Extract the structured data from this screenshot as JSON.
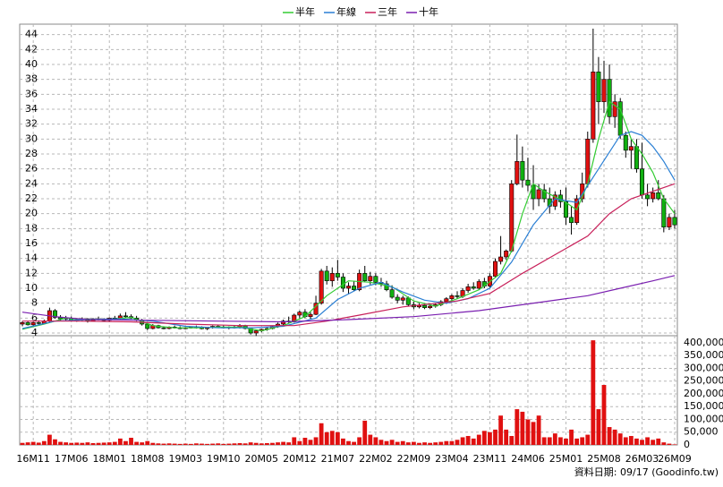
{
  "chart_data": {
    "type": "candlestick",
    "categories": [
      null,
      null,
      "16M11",
      null,
      null,
      null,
      null,
      null,
      null,
      "17M06",
      null,
      null,
      null,
      null,
      null,
      null,
      "18M01",
      null,
      null,
      null,
      null,
      null,
      null,
      "18M08",
      null,
      null,
      null,
      null,
      null,
      null,
      "19M03",
      null,
      null,
      null,
      null,
      null,
      null,
      "19M10",
      null,
      null,
      null,
      null,
      null,
      null,
      "20M05",
      null,
      null,
      null,
      null,
      null,
      null,
      "20M12",
      null,
      null,
      null,
      null,
      null,
      null,
      "21M07",
      null,
      null,
      null,
      null,
      null,
      null,
      "22M02",
      null,
      null,
      null,
      null,
      null,
      null,
      "22M09",
      null,
      null,
      null,
      null,
      null,
      null,
      "23M04",
      null,
      null,
      null,
      null,
      null,
      null,
      "23M11",
      null,
      null,
      null,
      null,
      null,
      null,
      "24M06",
      null,
      null,
      null,
      null,
      null,
      null,
      "25M01",
      null,
      null,
      null,
      null,
      null,
      null,
      "25M08",
      null,
      null,
      null,
      null,
      null,
      null,
      "26M03",
      null,
      null,
      null,
      null,
      null,
      "26M09"
    ],
    "open": [
      5.2,
      5.4,
      5.1,
      5.4,
      5.3,
      5.6,
      7.0,
      6.1,
      5.9,
      6.0,
      5.7,
      5.8,
      5.9,
      5.6,
      5.9,
      5.8,
      5.7,
      6.0,
      5.9,
      6.3,
      6.2,
      6.0,
      5.7,
      5.2,
      4.6,
      5.0,
      4.7,
      4.6,
      4.8,
      4.7,
      4.6,
      4.7,
      4.8,
      4.7,
      4.6,
      4.7,
      4.9,
      4.8,
      4.7,
      4.8,
      4.7,
      5.0,
      4.6,
      4.0,
      4.3,
      4.5,
      4.6,
      4.9,
      5.2,
      5.6,
      5.5,
      6.4,
      6.8,
      6.2,
      6.5,
      8.0,
      12.3,
      11.0,
      12.0,
      11.5,
      10.0,
      10.3,
      9.8,
      12.0,
      11.0,
      11.6,
      10.8,
      10.6,
      9.8,
      8.8,
      8.4,
      8.7,
      7.8,
      7.5,
      7.7,
      7.4,
      7.6,
      7.8,
      8.2,
      8.6,
      9.0,
      8.9,
      9.7,
      10.2,
      10.0,
      10.9,
      10.3,
      11.6,
      13.6,
      14.2,
      15.0,
      24.0,
      27.0,
      24.5,
      23.8,
      22.0,
      23.2,
      22.0,
      21.0,
      22.5,
      21.6,
      19.5,
      18.8,
      22.0,
      24.0,
      30.0,
      39.0,
      35.0,
      38.0,
      33.0,
      35.0,
      30.5,
      28.5,
      29.0,
      26.0,
      22.5,
      22.0,
      22.8,
      22.0,
      18.2,
      19.5
    ],
    "high": [
      5.6,
      5.6,
      5.5,
      5.7,
      5.8,
      7.4,
      7.2,
      6.4,
      6.3,
      6.2,
      6.0,
      6.1,
      6.0,
      6.0,
      6.2,
      6.0,
      6.1,
      6.3,
      6.6,
      6.8,
      6.5,
      6.3,
      5.9,
      5.4,
      5.2,
      5.1,
      4.9,
      4.9,
      5.0,
      4.9,
      4.8,
      4.9,
      5.0,
      4.9,
      4.8,
      5.0,
      5.1,
      5.0,
      4.9,
      5.0,
      5.2,
      5.1,
      4.7,
      4.4,
      4.6,
      4.8,
      5.0,
      5.4,
      5.8,
      6.2,
      6.6,
      7.0,
      7.2,
      6.8,
      9.0,
      12.6,
      13.0,
      12.8,
      13.8,
      12.0,
      10.8,
      11.0,
      12.5,
      13.0,
      12.2,
      12.0,
      11.4,
      11.0,
      10.4,
      9.2,
      9.0,
      8.9,
      8.2,
      8.0,
      7.9,
      7.8,
      8.0,
      8.4,
      8.8,
      9.2,
      9.6,
      10.0,
      10.6,
      10.8,
      11.2,
      11.4,
      12.0,
      14.0,
      17.0,
      15.2,
      24.5,
      30.6,
      29.0,
      27.5,
      26.5,
      24.0,
      24.0,
      23.5,
      23.0,
      23.2,
      23.5,
      21.0,
      22.5,
      25.5,
      31.0,
      44.8,
      41.0,
      40.5,
      40.0,
      36.0,
      35.5,
      31.0,
      30.0,
      30.0,
      29.5,
      24.0,
      23.5,
      24.5,
      22.5,
      20.0,
      20.5
    ],
    "low": [
      4.9,
      5.0,
      5.0,
      5.1,
      5.2,
      5.5,
      5.9,
      5.6,
      5.6,
      5.6,
      5.5,
      5.6,
      5.4,
      5.5,
      5.7,
      5.5,
      5.6,
      5.8,
      5.8,
      6.0,
      5.9,
      5.6,
      5.0,
      4.4,
      4.5,
      4.6,
      4.5,
      4.5,
      4.6,
      4.5,
      4.5,
      4.6,
      4.6,
      4.5,
      4.4,
      4.6,
      4.7,
      4.6,
      4.5,
      4.6,
      4.6,
      4.5,
      3.8,
      3.6,
      4.1,
      4.3,
      4.5,
      4.7,
      5.0,
      5.3,
      5.4,
      6.0,
      6.0,
      5.9,
      6.4,
      7.8,
      10.5,
      10.2,
      11.0,
      9.5,
      9.2,
      9.6,
      9.6,
      10.8,
      10.5,
      10.4,
      10.2,
      9.6,
      8.6,
      8.0,
      7.8,
      7.6,
      7.2,
      7.3,
      7.2,
      7.2,
      7.4,
      7.6,
      7.9,
      8.3,
      8.6,
      8.7,
      9.4,
      9.8,
      9.8,
      10.0,
      10.1,
      11.4,
      13.2,
      13.8,
      14.8,
      23.8,
      23.5,
      23.0,
      20.5,
      21.0,
      21.5,
      20.0,
      20.5,
      20.8,
      18.5,
      17.2,
      18.5,
      21.5,
      23.5,
      29.5,
      32.0,
      33.5,
      32.0,
      31.5,
      30.0,
      27.5,
      26.0,
      25.5,
      22.0,
      21.0,
      21.5,
      21.8,
      17.5,
      17.8,
      18.0
    ],
    "close": [
      5.4,
      5.1,
      5.4,
      5.3,
      5.6,
      7.0,
      6.1,
      5.9,
      6.0,
      5.7,
      5.8,
      5.9,
      5.6,
      5.9,
      5.8,
      5.7,
      6.0,
      5.9,
      6.3,
      6.2,
      6.0,
      5.7,
      5.2,
      4.6,
      5.0,
      4.7,
      4.6,
      4.8,
      4.7,
      4.6,
      4.7,
      4.8,
      4.7,
      4.6,
      4.7,
      4.9,
      4.8,
      4.7,
      4.8,
      4.7,
      5.0,
      4.6,
      4.0,
      4.3,
      4.5,
      4.6,
      4.9,
      5.2,
      5.6,
      5.5,
      6.4,
      6.8,
      6.2,
      6.5,
      8.0,
      12.3,
      11.0,
      12.0,
      11.5,
      10.0,
      10.3,
      9.8,
      12.0,
      11.0,
      11.6,
      10.8,
      10.6,
      9.8,
      8.8,
      8.4,
      8.7,
      7.8,
      7.5,
      7.7,
      7.4,
      7.6,
      7.8,
      8.2,
      8.6,
      9.0,
      8.9,
      9.7,
      10.2,
      10.0,
      10.9,
      10.3,
      11.6,
      13.6,
      14.2,
      15.0,
      24.0,
      27.0,
      24.5,
      23.8,
      22.0,
      23.2,
      22.0,
      21.0,
      22.5,
      21.6,
      19.5,
      18.8,
      22.0,
      24.0,
      30.0,
      39.0,
      35.0,
      38.0,
      33.0,
      35.0,
      30.5,
      28.5,
      29.0,
      26.0,
      22.5,
      22.0,
      22.8,
      22.0,
      18.2,
      19.5,
      18.5
    ],
    "up_color": "#e01010",
    "down_color": "#10b010",
    "ylim": [
      3.4,
      45.4
    ],
    "yticks": [
      4,
      6,
      8,
      10,
      12,
      14,
      16,
      18,
      20,
      22,
      24,
      26,
      28,
      30,
      32,
      34,
      36,
      38,
      40,
      42,
      44
    ],
    "grid": true,
    "legend": "top",
    "series": [
      {
        "name": "半年",
        "color": "#33cc33",
        "x": [
          0,
          4,
          8,
          12,
          16,
          20,
          24,
          28,
          32,
          36,
          40,
          44,
          48,
          52,
          56,
          60,
          64,
          68,
          72,
          76,
          80,
          84,
          88,
          90,
          92,
          94,
          96,
          100,
          102,
          104,
          106,
          108,
          110,
          112,
          114,
          116,
          118,
          120
        ],
        "values": [
          4.5,
          5.2,
          6.0,
          5.8,
          5.8,
          6.1,
          5.0,
          4.7,
          4.7,
          4.8,
          4.8,
          4.3,
          5.0,
          6.2,
          9.0,
          11.0,
          10.8,
          10.2,
          8.3,
          7.6,
          8.6,
          9.8,
          12.0,
          15.0,
          20.0,
          24.0,
          23.0,
          21.5,
          20.5,
          24.0,
          30.0,
          35.0,
          34.0,
          30.0,
          28.0,
          25.5,
          22.0,
          20.0
        ]
      },
      {
        "name": "年線",
        "color": "#2a7fd4",
        "x": [
          0,
          6,
          12,
          18,
          24,
          30,
          36,
          42,
          48,
          54,
          58,
          62,
          66,
          70,
          74,
          78,
          82,
          86,
          90,
          94,
          98,
          102,
          106,
          110,
          112,
          114,
          116,
          118,
          120
        ],
        "values": [
          4.6,
          5.6,
          5.8,
          5.9,
          5.6,
          4.9,
          4.7,
          4.7,
          4.9,
          6.0,
          8.5,
          10.0,
          10.8,
          9.5,
          8.4,
          8.0,
          8.6,
          10.0,
          13.5,
          18.5,
          22.0,
          21.5,
          26.0,
          30.5,
          31.0,
          30.5,
          29.0,
          27.0,
          24.5
        ]
      },
      {
        "name": "三年",
        "color": "#c8205a",
        "x": [
          0,
          10,
          20,
          30,
          40,
          50,
          56,
          62,
          70,
          80,
          86,
          92,
          98,
          104,
          108,
          112,
          116,
          120
        ],
        "values": [
          5.6,
          5.6,
          5.5,
          5.2,
          5.0,
          5.0,
          5.6,
          6.4,
          7.5,
          8.3,
          9.3,
          12.0,
          14.5,
          17.0,
          20.0,
          22.0,
          23.0,
          24.0
        ]
      },
      {
        "name": "十年",
        "color": "#7a1fb0",
        "x": [
          0,
          6,
          12,
          24,
          36,
          48,
          60,
          72,
          84,
          96,
          104,
          110,
          116,
          120
        ],
        "values": [
          6.8,
          6.2,
          5.8,
          5.7,
          5.6,
          5.5,
          5.8,
          6.2,
          7.0,
          8.2,
          9.0,
          10.0,
          11.0,
          11.7
        ]
      }
    ],
    "volume": {
      "color": "#e01010",
      "values": [
        8000,
        10000,
        12000,
        9000,
        15000,
        40000,
        22000,
        12000,
        10000,
        8000,
        9000,
        8000,
        10000,
        7000,
        8000,
        9000,
        10000,
        12000,
        25000,
        15000,
        28000,
        12000,
        10000,
        15000,
        8000,
        6000,
        5000,
        6000,
        5000,
        4000,
        5000,
        4000,
        6000,
        5000,
        4000,
        5000,
        6000,
        4000,
        5000,
        6000,
        7000,
        6000,
        10000,
        8000,
        6000,
        7000,
        8000,
        10000,
        12000,
        10000,
        30000,
        15000,
        28000,
        20000,
        30000,
        85000,
        50000,
        55000,
        50000,
        25000,
        15000,
        12000,
        30000,
        95000,
        40000,
        30000,
        20000,
        15000,
        20000,
        12000,
        15000,
        10000,
        12000,
        8000,
        10000,
        8000,
        10000,
        12000,
        15000,
        15000,
        20000,
        30000,
        35000,
        25000,
        40000,
        55000,
        50000,
        60000,
        115000,
        60000,
        35000,
        140000,
        130000,
        100000,
        90000,
        115000,
        30000,
        30000,
        45000,
        30000,
        25000,
        60000,
        25000,
        30000,
        40000,
        410000,
        140000,
        235000,
        70000,
        60000,
        45000,
        30000,
        35000,
        25000,
        20000,
        30000,
        20000,
        25000,
        10000,
        5000,
        2000
      ],
      "ylim": [
        0,
        428000
      ],
      "yticks": [
        0,
        {
          "value": 50000,
          "label": "50,000"
        },
        {
          "value": 100000,
          "label": "100,000"
        },
        {
          "value": 150000,
          "label": "150,000"
        },
        {
          "value": 200000,
          "label": "200,000"
        },
        {
          "value": 250000,
          "label": "250,000"
        },
        {
          "value": 300000,
          "label": "300,000"
        },
        {
          "value": 350000,
          "label": "350,000"
        },
        {
          "value": 400000,
          "label": "400,000"
        }
      ]
    },
    "footnote": "資料日期: 09/17 (Goodinfo.tw)"
  }
}
